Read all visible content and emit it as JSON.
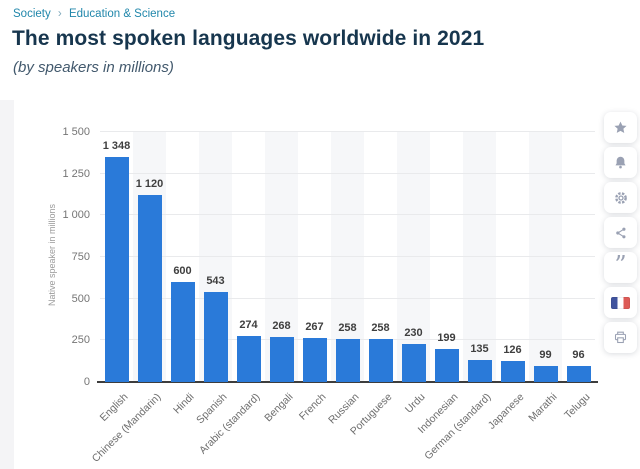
{
  "breadcrumb": {
    "separator": "›",
    "items": [
      {
        "label": "Society"
      },
      {
        "label": "Education & Science"
      }
    ]
  },
  "header": {
    "title": "The most spoken languages worldwide in 2021",
    "subtitle": "(by speakers in millions)"
  },
  "chart_data": {
    "type": "bar",
    "title": "The most spoken languages worldwide in 2021",
    "subtitle": "(by speakers in millions)",
    "categories": [
      "English",
      "Chinese (Mandarin)",
      "Hindi",
      "Spanish",
      "Arabic (standard)",
      "Bengali",
      "French",
      "Russian",
      "Portuguese",
      "Urdu",
      "Indonesian",
      "German (standard)",
      "Japanese",
      "Marathi",
      "Telugu"
    ],
    "values": [
      1348,
      1120,
      600,
      543,
      274,
      268,
      267,
      258,
      258,
      230,
      199,
      135,
      126,
      99,
      96
    ],
    "value_labels": [
      "1 348",
      "1 120",
      "600",
      "543",
      "274",
      "268",
      "267",
      "258",
      "258",
      "230",
      "199",
      "135",
      "126",
      "99",
      "96"
    ],
    "xlabel": "",
    "ylabel": "Native speaker in millions",
    "ylim": [
      0,
      1500
    ],
    "yticks": [
      0,
      250,
      500,
      750,
      1000,
      1250,
      1500
    ],
    "ytick_labels": [
      "0",
      "250",
      "500",
      "750",
      "1 000",
      "1 250",
      "1 500"
    ],
    "grid": true,
    "legend": "none",
    "bar_color": "#2a7ad9",
    "band_color": "#f6f7f9"
  },
  "sidebar": {
    "buttons": [
      {
        "name": "favorite",
        "icon": "star-icon"
      },
      {
        "name": "alerts",
        "icon": "bell-icon"
      },
      {
        "name": "settings",
        "icon": "gear-icon"
      },
      {
        "name": "share",
        "icon": "share-icon"
      },
      {
        "name": "cite",
        "icon": "quote-icon"
      },
      {
        "name": "language-french",
        "icon": "french-flag-icon"
      },
      {
        "name": "print",
        "icon": "printer-icon"
      }
    ]
  },
  "colors": {
    "bar": "#2a7ad9",
    "breadcrumb_link": "#2187ab",
    "title_text": "#17364e",
    "flag_blue": "#41549e",
    "flag_red": "#dd5b57",
    "icon_gray": "#9aa1b3"
  }
}
